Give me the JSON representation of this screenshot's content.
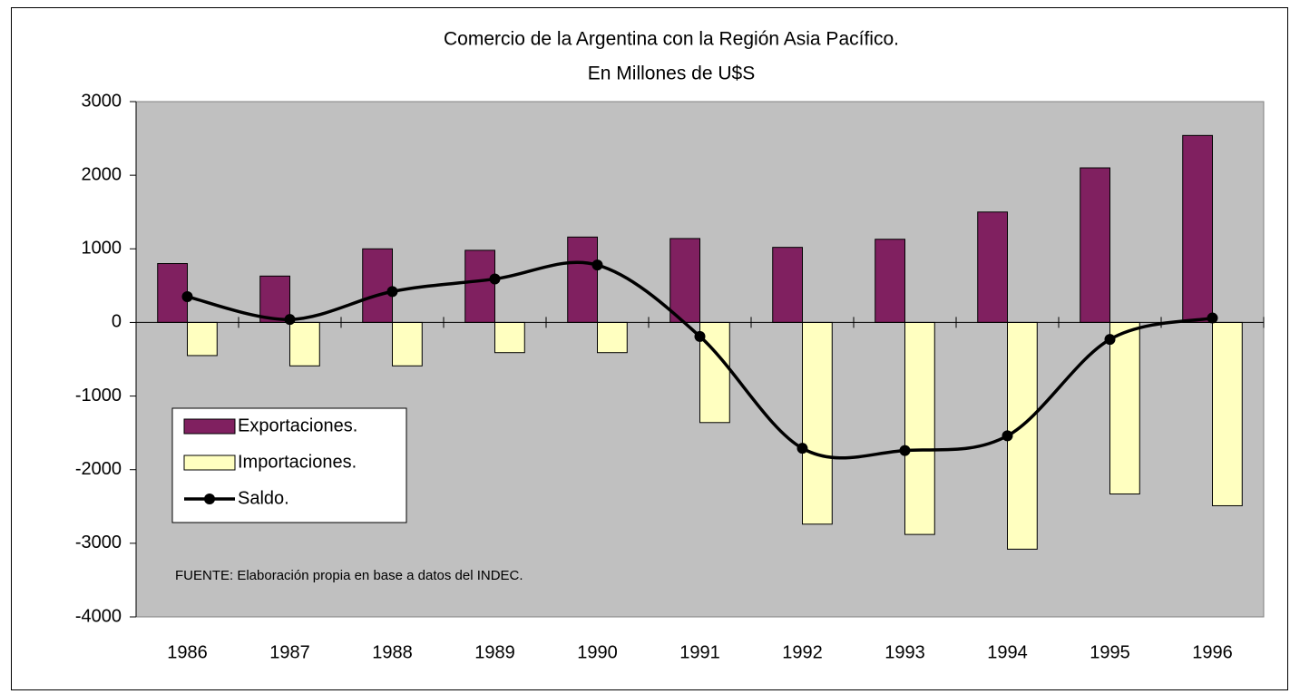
{
  "chart_data": {
    "type": "bar-line",
    "title": "Comercio de la Argentina con la Región Asia Pacífico.",
    "subtitle": "En Millones de U$S",
    "annotation": "FUENTE: Elaboración propia en base a datos del INDEC.",
    "categories": [
      "1986",
      "1987",
      "1988",
      "1989",
      "1990",
      "1991",
      "1992",
      "1993",
      "1994",
      "1995",
      "1996"
    ],
    "series": [
      {
        "name": "Exportaciones.",
        "type": "bar",
        "color": "#802060",
        "values": [
          800,
          630,
          1000,
          980,
          1160,
          1140,
          1020,
          1130,
          1500,
          2100,
          2540
        ]
      },
      {
        "name": "Importaciones.",
        "type": "bar",
        "color": "#ffffc0",
        "values": [
          -450,
          -590,
          -590,
          -410,
          -410,
          -1360,
          -2740,
          -2880,
          -3080,
          -2330,
          -2490
        ]
      },
      {
        "name": "Saldo.",
        "type": "line",
        "color": "#000000",
        "values": [
          350,
          40,
          420,
          590,
          780,
          -190,
          -1710,
          -1740,
          -1540,
          -230,
          60
        ]
      }
    ],
    "ylim": [
      -4000,
      3000
    ],
    "yticks": [
      -4000,
      -3000,
      -2000,
      -1000,
      0,
      1000,
      2000,
      3000
    ],
    "grid": false,
    "plot_background": "#c0c0c0",
    "legend": "lower-left"
  }
}
